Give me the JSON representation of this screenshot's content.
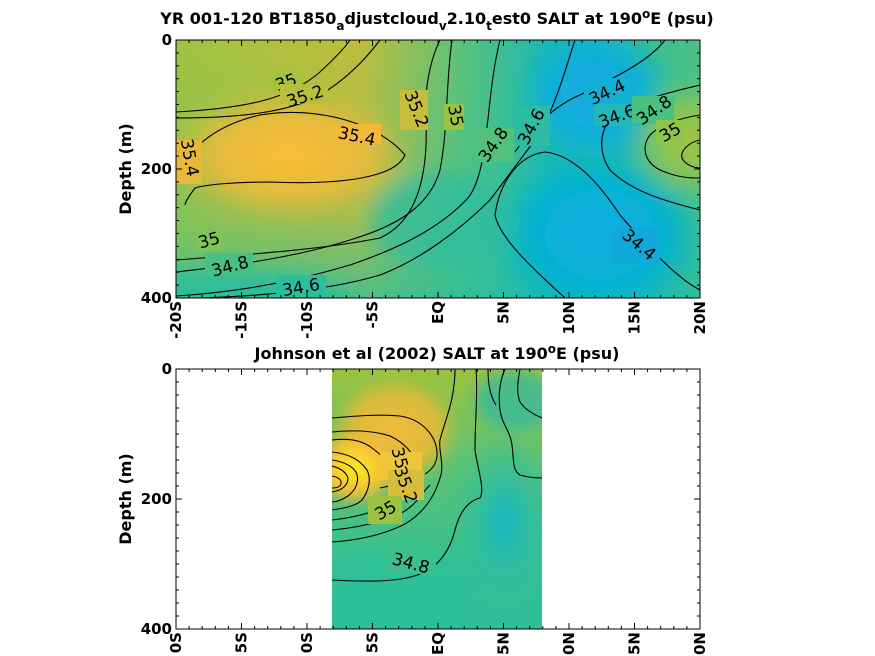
{
  "chart_data": [
    {
      "type": "heatmap",
      "subtype": "contour",
      "title_parts": {
        "t1": "YR 001-120 BT1850",
        "s1": "a",
        "t2": "djustcloud",
        "s2": "v",
        "t3": "2.10",
        "s3": "t",
        "t4": "est0 SALT at 190",
        "sup": "o",
        "t5": "E (psu)"
      },
      "ylabel": "Depth (m)",
      "xlim": [
        -20,
        20
      ],
      "ylim": [
        400,
        0
      ],
      "y_reversed": true,
      "x_tick_labels": [
        "-20S",
        "-15S",
        "-10S",
        "-5S",
        "EQ",
        "5N",
        "10N",
        "15N",
        "20N"
      ],
      "x_tick_values": [
        -20,
        -15,
        -10,
        -5,
        0,
        5,
        10,
        15,
        20
      ],
      "y_tick_labels": [
        "0",
        "200",
        "400"
      ],
      "y_tick_values": [
        0,
        200,
        400
      ],
      "colormap": "parula",
      "contour_labels": [
        {
          "text": "35",
          "x": -11.5,
          "y": 75
        },
        {
          "text": "35.2",
          "x": -10,
          "y": 90
        },
        {
          "text": "35.4",
          "x": -5.8,
          "y": 145
        },
        {
          "text": "35.4",
          "x": -19,
          "y": 180
        },
        {
          "text": "35.2",
          "x": -1.5,
          "y": 110
        },
        {
          "text": "35",
          "x": 1,
          "y": 115
        },
        {
          "text": "34.8",
          "x": 4.5,
          "y": 158
        },
        {
          "text": "34.6",
          "x": 7.5,
          "y": 138
        },
        {
          "text": "34.4",
          "x": 13,
          "y": 80
        },
        {
          "text": "34.6",
          "x": 14,
          "y": 115
        },
        {
          "text": "34.8",
          "x": 17,
          "y": 108
        },
        {
          "text": "35",
          "x": 18.3,
          "y": 138
        },
        {
          "text": "34.4",
          "x": 15,
          "y": 320
        },
        {
          "text": "35",
          "x": -17.5,
          "y": 308
        },
        {
          "text": "34.8",
          "x": -16.5,
          "y": 350
        },
        {
          "text": "34.6",
          "x": -10,
          "y": 380
        }
      ]
    },
    {
      "type": "heatmap",
      "subtype": "contour",
      "title_parts": {
        "t1": "Johnson et al (2002) SALT at 190",
        "sup": "o",
        "t2": "E (psu)"
      },
      "ylabel": "Depth (m)",
      "xlim": [
        -20,
        20
      ],
      "ylim": [
        400,
        0
      ],
      "y_reversed": true,
      "data_x_range": [
        -8,
        8
      ],
      "x_tick_labels": [
        "0S",
        "5S",
        "0S",
        "5S",
        "EQ",
        "5N",
        "0N",
        "5N",
        "0N"
      ],
      "x_tick_values": [
        -20,
        -15,
        -10,
        -5,
        0,
        5,
        10,
        15,
        20
      ],
      "y_tick_labels": [
        "0",
        "200",
        "400"
      ],
      "y_tick_values": [
        0,
        200,
        400
      ],
      "colormap": "parula",
      "contour_labels": [
        {
          "text": "35.4",
          "x": -2,
          "y": 165
        },
        {
          "text": "35.2",
          "x": -2.5,
          "y": 185
        },
        {
          "text": "35",
          "x": -3.8,
          "y": 225
        },
        {
          "text": "34.8",
          "x": -2,
          "y": 300
        }
      ]
    }
  ]
}
